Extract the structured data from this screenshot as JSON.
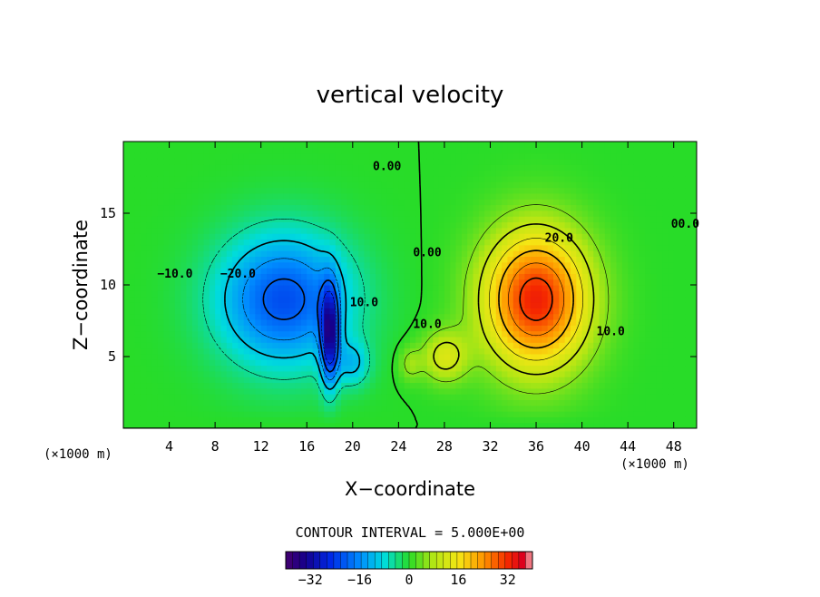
{
  "chart_data": {
    "type": "heatmap",
    "title": "vertical velocity",
    "xlabel": "X−coordinate",
    "ylabel": "Z−coordinate",
    "x_unit": "(×1000 m)",
    "y_unit": "(×1000 m)",
    "xlim": [
      0,
      50
    ],
    "ylim": [
      0,
      20
    ],
    "x_ticks": [
      4,
      8,
      12,
      16,
      20,
      24,
      28,
      32,
      36,
      40,
      44,
      48
    ],
    "x_tick_labels": [
      "4",
      "8",
      "12",
      "16",
      "20",
      "24",
      "28",
      "32",
      "36",
      "40",
      "44",
      "48"
    ],
    "y_ticks": [
      5,
      10,
      15
    ],
    "y_tick_labels": [
      "5",
      "10",
      "15"
    ],
    "contour_interval_text": "CONTOUR INTERVAL = 5.000E+00",
    "colorbar": {
      "range": [
        -40,
        40
      ],
      "ticks": [
        -32,
        -16,
        0,
        16,
        32
      ],
      "tick_labels": [
        "−32",
        "−16",
        "0",
        "16",
        "32"
      ]
    },
    "features": [
      {
        "kind": "downdraft",
        "x": 14,
        "z": 9,
        "sx": 5.8,
        "sz": 4.6,
        "amplitude": -22
      },
      {
        "kind": "downdraft-core",
        "x": 18,
        "z": 6.5,
        "sx": 0.8,
        "sz": 3.4,
        "amplitude": -26
      },
      {
        "kind": "downdraft-lobe",
        "x": 20,
        "z": 4.5,
        "sx": 1.5,
        "sz": 1.6,
        "amplitude": -9
      },
      {
        "kind": "updraft",
        "x": 36,
        "z": 9,
        "sx": 4.6,
        "sz": 4.8,
        "amplitude": 33
      },
      {
        "kind": "updraft-lobe",
        "x": 28,
        "z": 5,
        "sx": 2.0,
        "sz": 1.8,
        "amplitude": 12
      },
      {
        "kind": "updraft-lobe",
        "x": 25,
        "z": 4.5,
        "sx": 1.0,
        "sz": 1.2,
        "amplitude": 6
      }
    ],
    "contour_labels": [
      {
        "text": "0.00",
        "x": 23,
        "z": 18
      },
      {
        "text": "0.00",
        "x": 26.5,
        "z": 12
      },
      {
        "text": "00.0",
        "x": 49,
        "z": 14
      },
      {
        "text": "20.0",
        "x": 38,
        "z": 13
      },
      {
        "text": "10.0",
        "x": 42.5,
        "z": 6.5
      },
      {
        "text": "10.0",
        "x": 26.5,
        "z": 7
      },
      {
        "text": "−10.0",
        "x": 4.5,
        "z": 10.5
      },
      {
        "text": "−20.0",
        "x": 10,
        "z": 10.5
      },
      {
        "text": "10.0",
        "x": 21,
        "z": 8.5
      }
    ]
  }
}
